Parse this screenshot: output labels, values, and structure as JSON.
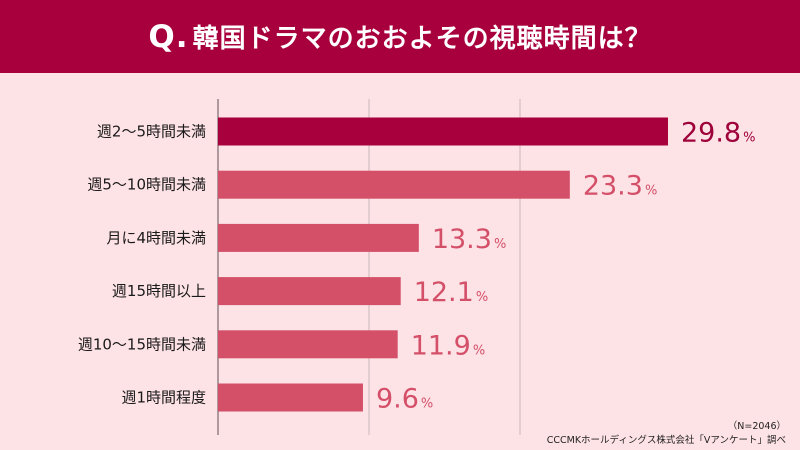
{
  "header": {
    "q_mark": "Q.",
    "title": "韓国ドラマのおおよその視聴時間は？"
  },
  "footer": {
    "sample": "（N=2046）",
    "source": "CCCMKホールディングス株式会社「Vアンケート」調べ"
  },
  "colors": {
    "header_bg": "#a8003c",
    "top_bar": "#a8003c",
    "bar": "#d45069",
    "value_top": "#9e0039",
    "value": "#d45069",
    "background": "#fde2e6"
  },
  "chart_data": {
    "type": "bar",
    "orientation": "horizontal",
    "categories": [
      "週2～5時間未満",
      "週5～10時間未満",
      "月に4時間未満",
      "週15時間以上",
      "週10～15時間未満",
      "週1時間程度"
    ],
    "values": [
      29.8,
      23.3,
      13.3,
      12.1,
      11.9,
      9.6
    ],
    "value_labels": [
      "29.8",
      "23.3",
      "13.3",
      "12.1",
      "11.9",
      "9.6"
    ],
    "unit": "%",
    "xlim": [
      0,
      31
    ],
    "grid": true
  }
}
